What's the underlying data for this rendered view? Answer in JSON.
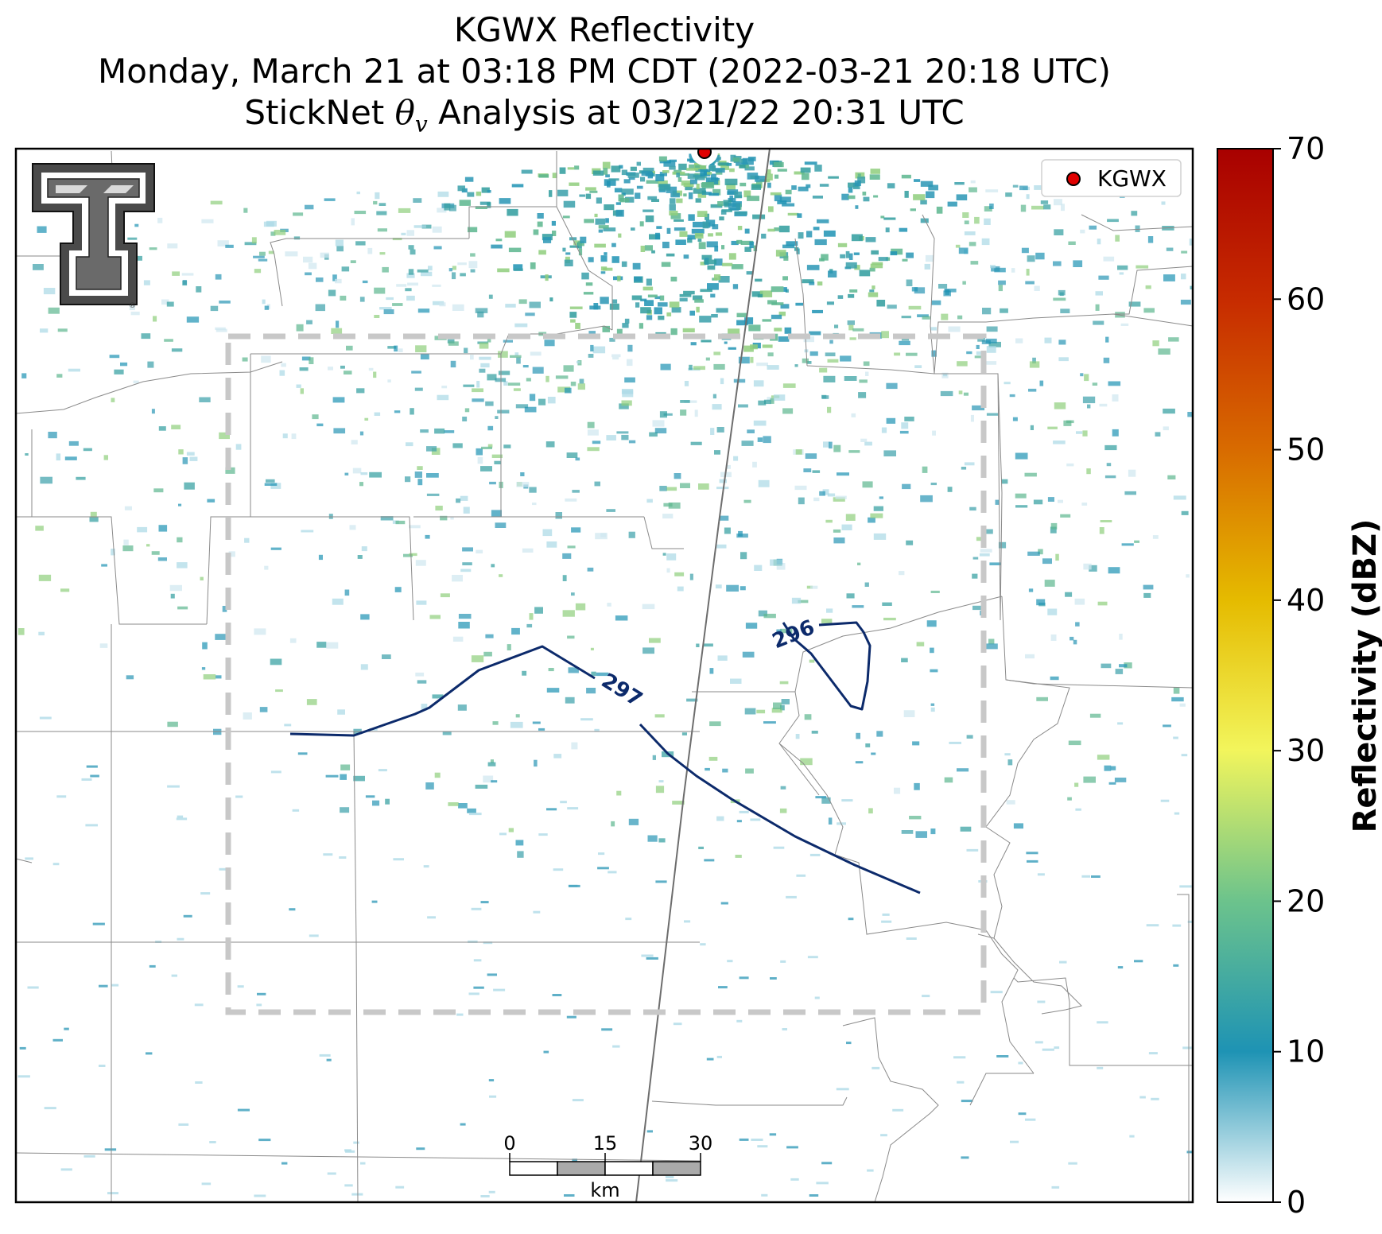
{
  "title": {
    "line1": "KGWX Reflectivity",
    "line2": "Monday, March 21 at 03:18 PM CDT (2022-03-21 20:18 UTC)",
    "line3_prefix": "StickNet ",
    "line3_symbol": "θ",
    "line3_subscript": "v",
    "line3_suffix": " Analysis at 03/21/22 20:31 UTC"
  },
  "legend": {
    "radar_label": "KGWX",
    "marker_color": "#e00000"
  },
  "colorbar": {
    "label": "Reflectivity (dBZ)",
    "min": 0,
    "max": 70,
    "ticks": [
      "0",
      "10",
      "20",
      "30",
      "40",
      "50",
      "60",
      "70"
    ],
    "colors": [
      "#ffffff",
      "#1e93b4",
      "#6cc38c",
      "#f2f55c",
      "#e5bb00",
      "#d86b00",
      "#c72b00",
      "#a80000"
    ]
  },
  "contours": [
    {
      "label": "297",
      "color": "#0c2a6b"
    },
    {
      "label": "296",
      "color": "#0c2a6b"
    }
  ],
  "scalebar": {
    "labels": [
      "0",
      "15",
      "30"
    ],
    "unit": "km"
  },
  "logo": {
    "text": "T",
    "color": "#5a5a5a"
  }
}
